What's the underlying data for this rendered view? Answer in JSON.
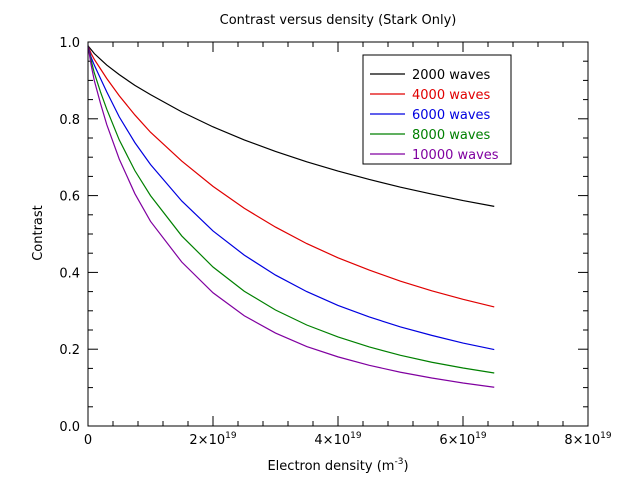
{
  "chart_data": {
    "type": "line",
    "title": "Contrast versus density (Stark Only)",
    "xlabel": "Electron density (m",
    "xlabel_sup": "-3",
    "xlabel_end": ")",
    "ylabel": "Contrast",
    "xlim": [
      0,
      8e+19
    ],
    "ylim": [
      0,
      1.0
    ],
    "x_ticks": [
      {
        "value": 0,
        "base": "0",
        "exp": ""
      },
      {
        "value": 2e+19,
        "base": "2×10",
        "exp": "19"
      },
      {
        "value": 4e+19,
        "base": "4×10",
        "exp": "19"
      },
      {
        "value": 6e+19,
        "base": "6×10",
        "exp": "19"
      },
      {
        "value": 8e+19,
        "base": "8×10",
        "exp": "19"
      }
    ],
    "y_ticks": [
      {
        "value": 0.0,
        "label": "0.0"
      },
      {
        "value": 0.2,
        "label": "0.2"
      },
      {
        "value": 0.4,
        "label": "0.4"
      },
      {
        "value": 0.6,
        "label": "0.6"
      },
      {
        "value": 0.8,
        "label": "0.8"
      },
      {
        "value": 1.0,
        "label": "1.0"
      }
    ],
    "grid": false,
    "legend_position": "top-right",
    "x": [
      0,
      2.5e+17,
      5e+17,
      1e+18,
      2e+18,
      3e+18,
      5e+18,
      7.5e+18,
      1e+19,
      1.5e+19,
      2e+19,
      2.5e+19,
      3e+19,
      3.5e+19,
      4e+19,
      4.5e+19,
      5e+19,
      5.5e+19,
      6e+19,
      6.5e+19
    ],
    "series": [
      {
        "name": "2000 waves",
        "color": "#000000",
        "values": [
          0.99,
          0.985,
          0.98,
          0.97,
          0.955,
          0.94,
          0.915,
          0.887,
          0.863,
          0.818,
          0.779,
          0.745,
          0.715,
          0.688,
          0.664,
          0.642,
          0.622,
          0.604,
          0.587,
          0.572
        ]
      },
      {
        "name": "4000 waves",
        "color": "#e00000",
        "values": [
          0.99,
          0.98,
          0.97,
          0.955,
          0.93,
          0.905,
          0.86,
          0.81,
          0.765,
          0.69,
          0.624,
          0.567,
          0.518,
          0.475,
          0.438,
          0.406,
          0.377,
          0.352,
          0.33,
          0.31
        ]
      },
      {
        "name": "6000 waves",
        "color": "#0000e0",
        "values": [
          0.99,
          0.975,
          0.96,
          0.94,
          0.905,
          0.87,
          0.805,
          0.738,
          0.681,
          0.586,
          0.508,
          0.445,
          0.393,
          0.35,
          0.314,
          0.284,
          0.258,
          0.236,
          0.216,
          0.199
        ]
      },
      {
        "name": "8000 waves",
        "color": "#008000",
        "values": [
          0.99,
          0.97,
          0.952,
          0.92,
          0.87,
          0.825,
          0.745,
          0.665,
          0.6,
          0.495,
          0.414,
          0.351,
          0.302,
          0.263,
          0.232,
          0.206,
          0.184,
          0.166,
          0.151,
          0.138
        ]
      },
      {
        "name": "10000 waves",
        "color": "#8000a0",
        "values": [
          0.99,
          0.965,
          0.94,
          0.9,
          0.84,
          0.785,
          0.695,
          0.605,
          0.533,
          0.427,
          0.347,
          0.287,
          0.242,
          0.207,
          0.18,
          0.158,
          0.14,
          0.125,
          0.112,
          0.101
        ]
      }
    ]
  }
}
